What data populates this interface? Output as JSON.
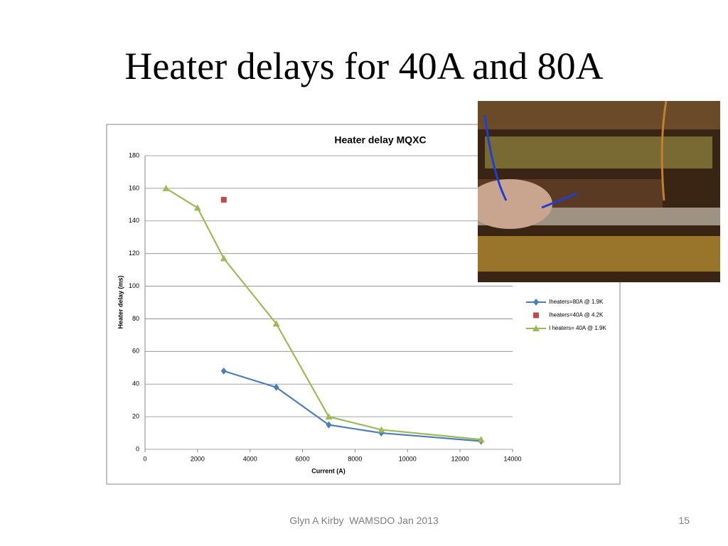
{
  "slide": {
    "title": "Heater delays for 40A and 80A",
    "footer": "Glyn A Kirby  WAMSDO Jan 2013",
    "page_number": "15"
  },
  "chart_data": {
    "type": "line",
    "title": "Heater delay MQXC",
    "x_label": "Current (A)",
    "y_label": "Heater delay (ms)",
    "xlim": [
      0,
      14000
    ],
    "xticks": [
      0,
      2000,
      4000,
      6000,
      8000,
      10000,
      12000,
      14000
    ],
    "ylim": [
      0,
      180
    ],
    "yticks": [
      0,
      20,
      40,
      60,
      80,
      100,
      120,
      140,
      160,
      180
    ],
    "grid": true,
    "legend": "right",
    "series": [
      {
        "name": "Iheaters=80A @ 1.9K",
        "color": "#4a7ebb",
        "marker": "diamond",
        "line": true,
        "x": [
          3000,
          5000,
          7000,
          9000,
          12800
        ],
        "values": [
          48,
          38,
          15,
          10,
          5
        ]
      },
      {
        "name": "Iheaters=40A @ 4.2K",
        "color": "#be4b48",
        "marker": "square",
        "line": false,
        "x": [
          3000
        ],
        "values": [
          153
        ]
      },
      {
        "name": "I heaters= 40A @ 1.9K",
        "color": "#9bbb59",
        "marker": "triangle",
        "line": true,
        "x": [
          800,
          2000,
          3000,
          5000,
          7000,
          9000,
          12800
        ],
        "values": [
          160,
          148,
          117,
          77,
          20,
          12,
          6
        ]
      }
    ]
  }
}
